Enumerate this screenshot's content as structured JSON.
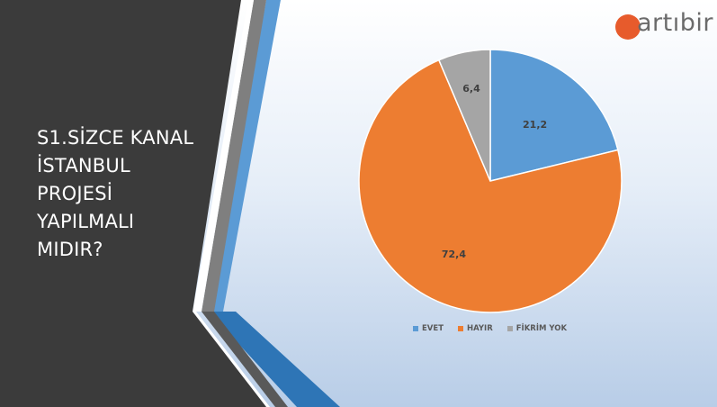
{
  "slide": {
    "title": "S1.SİZCE KANAL\nİSTANBUL\nPROJESİ\nYAPILMALI\nMIDIR?"
  },
  "logo": {
    "text": "artıbir",
    "accent": "#e75b2c"
  },
  "colors": {
    "dark_panel": "#3b3b3b",
    "blue_stripe": "#5b9bd5",
    "dark_blue_stripe": "#2e75b6"
  },
  "chart_data": {
    "type": "pie",
    "categories": [
      "EVET",
      "HAYIR",
      "FİKRİM YOK"
    ],
    "values": [
      21.2,
      72.4,
      6.4
    ],
    "data_labels": [
      "21,2",
      "72,4",
      "6,4"
    ],
    "colors": [
      "#5b9bd5",
      "#ed7d31",
      "#a5a5a5"
    ],
    "legend": "bottom"
  }
}
